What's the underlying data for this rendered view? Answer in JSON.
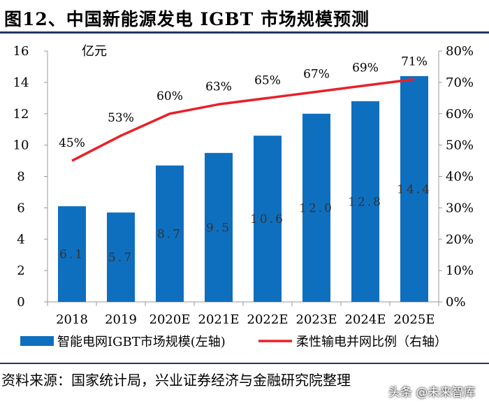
{
  "title": "图12、中国新能源发电 IGBT 市场规模预测",
  "source": "资料来源：国家统计局，兴业证券经济与金融研究院整理",
  "watermark": "头条 @未来智库",
  "chart_data": {
    "type": "bar",
    "categories": [
      "2018",
      "2019",
      "2020E",
      "2021E",
      "2022E",
      "2023E",
      "2024E",
      "2025E"
    ],
    "series": [
      {
        "name": "智能电网IGBT市场规模(左轴)",
        "type": "bar",
        "axis": "left",
        "values": [
          6.1,
          5.7,
          8.7,
          9.5,
          10.6,
          12.0,
          12.8,
          14.4
        ],
        "labels": [
          "6.1",
          "5.7",
          "8.7",
          "9.5",
          "10.6",
          "12.0",
          "12.8",
          "14.4"
        ]
      },
      {
        "name": "柔性输电并网比例（右轴）",
        "type": "line",
        "axis": "right",
        "values": [
          45,
          53,
          60,
          63,
          65,
          67,
          69,
          71
        ],
        "labels": [
          "45%",
          "53%",
          "60%",
          "63%",
          "65%",
          "67%",
          "69%",
          "71%"
        ]
      }
    ],
    "ylabel": "亿元",
    "ylim": [
      0,
      16
    ],
    "yticks": [
      "0",
      "2",
      "4",
      "6",
      "8",
      "10",
      "12",
      "14",
      "16"
    ],
    "y2lim": [
      0,
      80
    ],
    "y2ticks": [
      "0%",
      "10%",
      "20%",
      "30%",
      "40%",
      "50%",
      "60%",
      "70%",
      "80%"
    ],
    "grid": false,
    "legend": "bottom",
    "colors": {
      "bar": "#0e6fbf",
      "line": "#e8202a",
      "axis": "#999999"
    }
  }
}
